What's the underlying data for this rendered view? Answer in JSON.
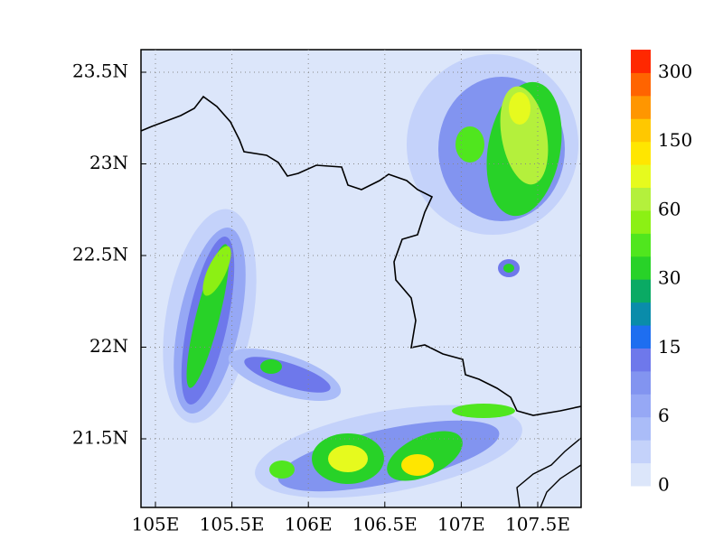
{
  "map": {
    "x_ticks": [
      "105E",
      "105.5E",
      "106E",
      "106.5E",
      "107E",
      "107.5E"
    ],
    "y_ticks": [
      "23.5N",
      "23N",
      "22.5N",
      "22N",
      "21.5N"
    ],
    "colorbar": {
      "labels": [
        "0",
        "6",
        "15",
        "30",
        "60",
        "150",
        "300"
      ],
      "colors": [
        "#dce6fa",
        "#c4d2fa",
        "#aabcf8",
        "#96a8f5",
        "#8294f0",
        "#6e78eb",
        "#1e6ef0",
        "#0a8caa",
        "#0aaa64",
        "#28d228",
        "#50e61e",
        "#8cf014",
        "#b4f03c",
        "#e6fa1e",
        "#ffe600",
        "#ffc800",
        "#ff9600",
        "#ff6400",
        "#ff2800"
      ]
    }
  }
}
